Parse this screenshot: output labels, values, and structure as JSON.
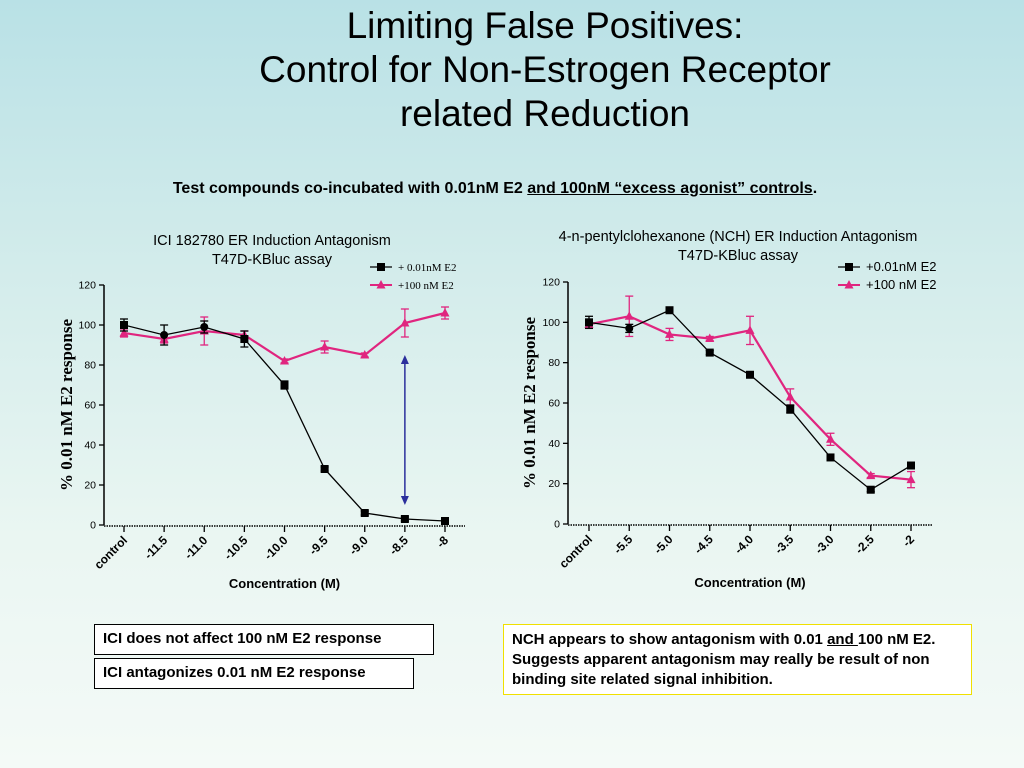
{
  "slide": {
    "title_lines": [
      "Limiting False Positives:",
      "Control for Non-Estrogen Receptor",
      "related Reduction"
    ],
    "subtitle_part1": "Test compounds co-incubated with 0.01nM E2 ",
    "subtitle_part2": "and 100nM “excess agonist” controls",
    "subtitle_part3": ".",
    "note_ici_1": "ICI does not affect 100 nM E2 response",
    "note_ici_2": "ICI antagonizes 0.01 nM E2 response",
    "note_nch_part1": "NCH appears to show antagonism with 0.01 ",
    "note_nch_part2": "and ",
    "note_nch_part3": "100 nM E2.  Suggests apparent antagonism may really be result of non binding site related signal inhibition.",
    "colors": {
      "low": "#000000",
      "high": "#e0257f",
      "arrow": "#2b2f9c"
    }
  },
  "chart_data": [
    {
      "type": "line",
      "title_lines": [
        "ICI 182780 ER Induction Antagonism",
        "T47D-KBluc assay"
      ],
      "xlabel": "Concentration (M)",
      "ylabel": "% 0.01 nM E2 response",
      "categories": [
        "control",
        "-11.5",
        "-11.0",
        "-10.5",
        "-10.0",
        "-9.5",
        "-9.0",
        "-8.5",
        "-8"
      ],
      "ylim": [
        0,
        120
      ],
      "yticks": [
        0,
        20,
        40,
        60,
        80,
        100,
        120
      ],
      "legend_position": "top-right",
      "series": [
        {
          "name": "+ 0.01nM E2",
          "marker": "square",
          "color": "#000000",
          "values": [
            100,
            95,
            99,
            93,
            70,
            28,
            6,
            3,
            2
          ],
          "errors": [
            3,
            5,
            3,
            4,
            2,
            1,
            1,
            1,
            1
          ]
        },
        {
          "name": "+100 nM E2",
          "marker": "triangle",
          "color": "#e0257f",
          "values": [
            96,
            93,
            97,
            95,
            82,
            89,
            85,
            101,
            106
          ],
          "errors": [
            2,
            2,
            7,
            2,
            1,
            3,
            1,
            7,
            3
          ]
        }
      ],
      "annotation": {
        "type": "double-arrow",
        "category": "-8.5",
        "from": 85,
        "to": 10
      }
    },
    {
      "type": "line",
      "title_lines": [
        "4-n-pentylclohexanone (NCH) ER Induction Antagonism",
        "T47D-KBluc assay"
      ],
      "xlabel": "Concentration (M)",
      "ylabel": "% 0.01 nM E2 response",
      "categories": [
        "control",
        "-5.5",
        "-5.0",
        "-4.5",
        "-4.0",
        "-3.5",
        "-3.0",
        "-2.5",
        "-2"
      ],
      "ylim": [
        0,
        120
      ],
      "yticks": [
        0,
        20,
        40,
        60,
        80,
        100,
        120
      ],
      "legend_position": "top-right",
      "series": [
        {
          "name": "+0.01nM E2",
          "marker": "square",
          "color": "#000000",
          "values": [
            100,
            97,
            106,
            85,
            74,
            57,
            33,
            17,
            29
          ],
          "errors": [
            3,
            2,
            1,
            1,
            1,
            2,
            1,
            1,
            1
          ]
        },
        {
          "name": "+100 nM E2",
          "marker": "triangle",
          "color": "#e0257f",
          "values": [
            99,
            103,
            94,
            92,
            96,
            63,
            42,
            24,
            22
          ],
          "errors": [
            2,
            10,
            3,
            1,
            7,
            4,
            3,
            1,
            4
          ]
        }
      ]
    }
  ]
}
